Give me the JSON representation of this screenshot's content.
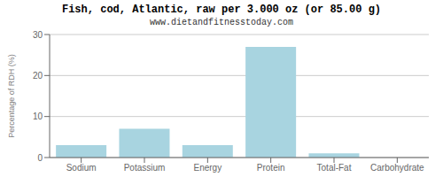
{
  "chart_data": {
    "type": "bar",
    "title": "Fish, cod, Atlantic, raw per 3.000 oz (or 85.00 g)",
    "subtitle": "www.dietandfitnesstoday.com",
    "categories": [
      "Sodium",
      "Potassium",
      "Energy",
      "Protein",
      "Total-Fat",
      "Carbohydrate"
    ],
    "values": [
      3.0,
      7.0,
      3.0,
      27.0,
      1.0,
      0.0
    ],
    "color": "#a8d4e0",
    "ylabel": "Percentage of RDH (%)",
    "ylim": [
      0,
      30
    ],
    "yticks": [
      0,
      10,
      20,
      30
    ],
    "grid": true
  }
}
